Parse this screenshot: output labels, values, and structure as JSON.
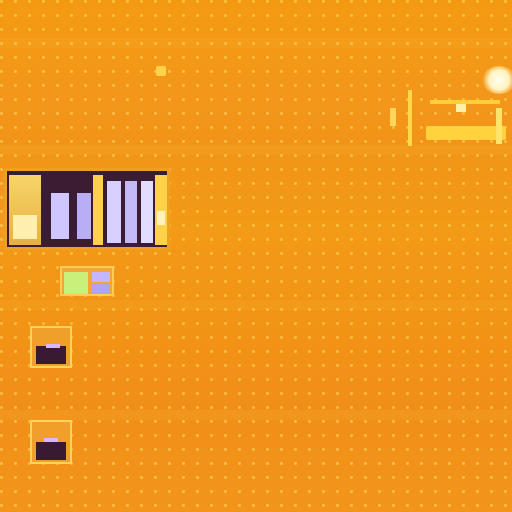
{
  "scene": {
    "description_colors": {
      "background": "#f39616",
      "highlight": "#ffe98a",
      "dark": "#3a1a33",
      "window_light": "#cfc6ff",
      "green_patch": "#c9f07a"
    },
    "icons": [
      "light-glow-icon"
    ]
  }
}
